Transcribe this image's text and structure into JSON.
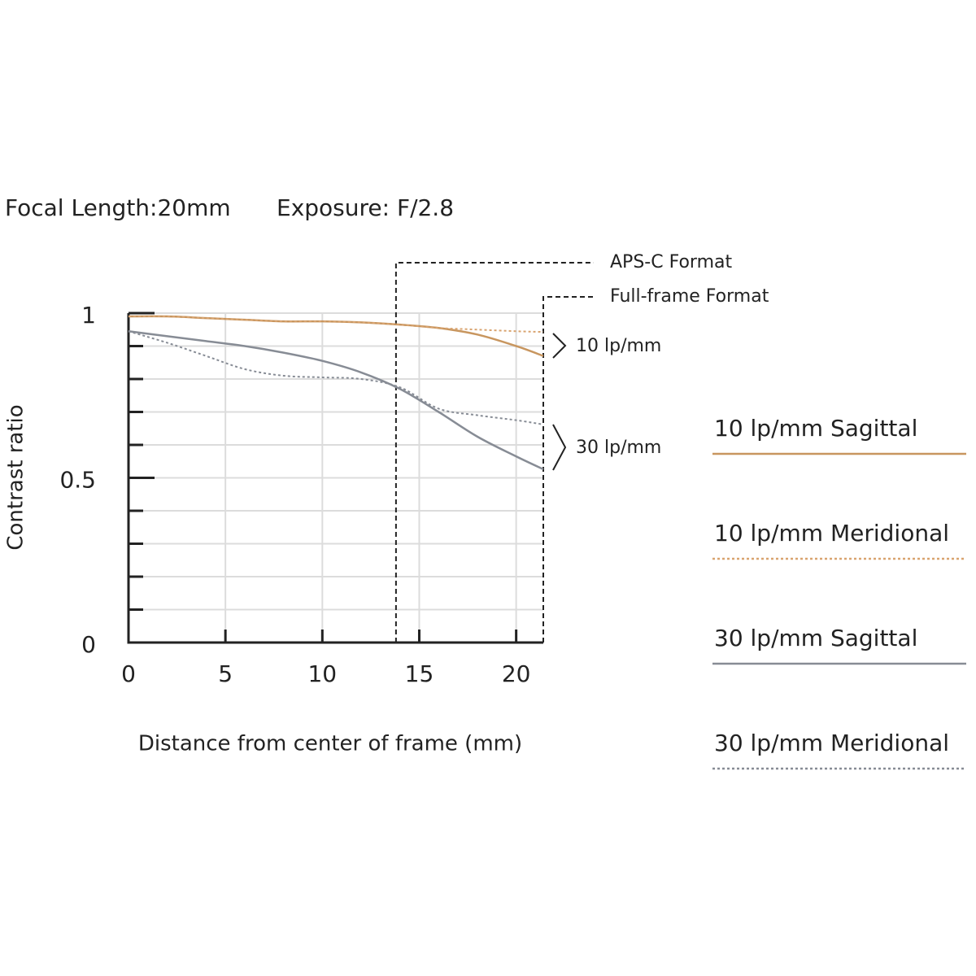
{
  "chart_data": {
    "type": "line",
    "title_parts": [
      "Focal Length:20mm",
      "Exposure: F/2.8"
    ],
    "xlabel": "Distance from center of frame (mm)",
    "ylabel": "Contrast ratio",
    "x": [
      0,
      2,
      4,
      6,
      8,
      10,
      12,
      14,
      16,
      18,
      20,
      21.4
    ],
    "series": [
      {
        "name": "10 lp/mm Sagittal",
        "color": "#c8965f",
        "style": "solid",
        "values": [
          0.99,
          0.99,
          0.985,
          0.98,
          0.975,
          0.975,
          0.972,
          0.965,
          0.955,
          0.935,
          0.9,
          0.87
        ]
      },
      {
        "name": "10 lp/mm Meridional",
        "color": "#d9a470",
        "style": "dotted",
        "values": [
          0.99,
          0.99,
          0.985,
          0.98,
          0.975,
          0.975,
          0.972,
          0.965,
          0.955,
          0.95,
          0.945,
          0.943
        ]
      },
      {
        "name": "30 lp/mm Sagittal",
        "color": "#878c95",
        "style": "solid",
        "values": [
          0.945,
          0.93,
          0.915,
          0.9,
          0.88,
          0.855,
          0.82,
          0.77,
          0.7,
          0.625,
          0.565,
          0.526
        ]
      },
      {
        "name": "30 lp/mm Meridional",
        "color": "#878c95",
        "style": "dotted",
        "values": [
          0.945,
          0.91,
          0.87,
          0.83,
          0.81,
          0.805,
          0.8,
          0.775,
          0.71,
          0.69,
          0.675,
          0.662
        ]
      }
    ],
    "format_lines": [
      {
        "label": "APS-C Format",
        "x": 13.8
      },
      {
        "label": "Full-frame Format",
        "x": 21.4
      }
    ],
    "group_labels": [
      "10 lp/mm",
      "30 lp/mm"
    ],
    "xlim": [
      0,
      21.4
    ],
    "ylim": [
      0,
      1
    ],
    "xticks": [
      0,
      5,
      10,
      15,
      20
    ],
    "yticks": [
      0,
      0.5,
      1
    ],
    "yminor_ticks": [
      0.1,
      0.2,
      0.3,
      0.4,
      0.6,
      0.7,
      0.8,
      0.9
    ],
    "grid": true
  }
}
